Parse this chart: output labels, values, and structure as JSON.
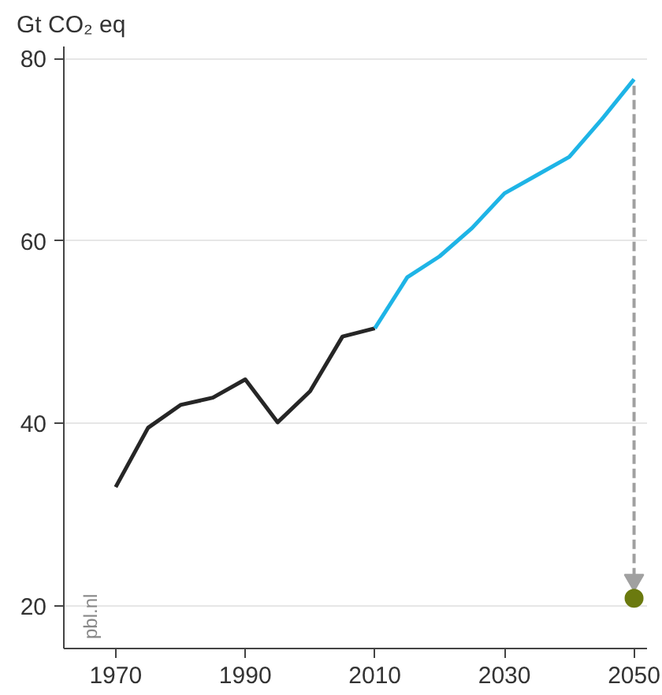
{
  "chart_data": {
    "type": "line",
    "ylabel": "Gt CO₂ eq",
    "annotations": [
      "pbl.nl"
    ],
    "series": [
      {
        "color": "#262626",
        "x": [
          1970,
          1975,
          1980,
          1985,
          1990,
          1995,
          2000,
          2005,
          2010
        ],
        "values": [
          33.0,
          39.5,
          42.0,
          42.8,
          44.8,
          40.1,
          43.5,
          49.5,
          50.4
        ]
      },
      {
        "color": "#1eb4e6",
        "x": [
          2010,
          2015,
          2020,
          2025,
          2030,
          2035,
          2040,
          2045,
          2050
        ],
        "values": [
          50.4,
          56.0,
          58.3,
          61.4,
          65.2,
          67.2,
          69.2,
          73.3,
          77.7
        ]
      },
      {
        "type": "line",
        "color": "#a0a0a0",
        "line_style": "dashed",
        "marker": "triangle",
        "x": [
          2050,
          2050
        ],
        "values": [
          77.0,
          22.8
        ]
      },
      {
        "type": "scatter",
        "marker": "circle",
        "color": "#6b7a0f",
        "x": [
          2050
        ],
        "values": [
          20.8
        ]
      }
    ],
    "xlim": [
      1962,
      2052
    ],
    "ylim": [
      15.3,
      81.3
    ],
    "xticks": [
      1970,
      1990,
      2010,
      2030,
      2050
    ],
    "yticks": [
      20,
      40,
      60,
      80
    ],
    "grid": "y",
    "marker": "none",
    "line_style": "solid"
  }
}
